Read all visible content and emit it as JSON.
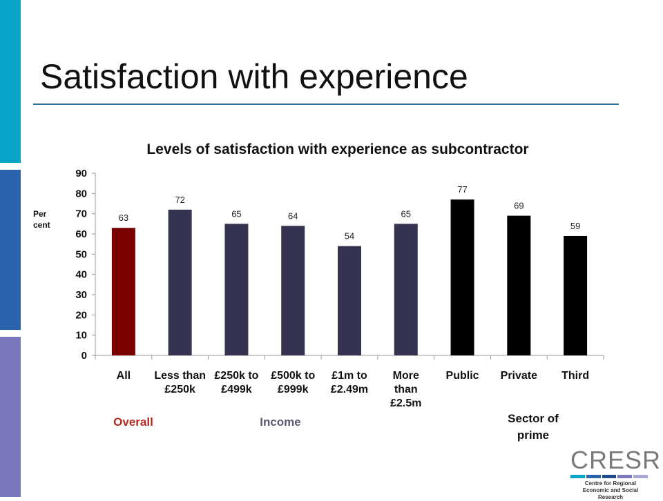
{
  "slide": {
    "title": "Satisfaction with experience"
  },
  "chart_data": {
    "type": "bar",
    "title": "Levels of satisfaction with experience as subcontractor",
    "ylabel": "Per cent",
    "xlabel": "",
    "ylim": [
      0,
      90
    ],
    "yticks": [
      0,
      10,
      20,
      30,
      40,
      50,
      60,
      70,
      80,
      90
    ],
    "grid": false,
    "categories": [
      "All",
      "Less than £250k",
      "£250k to £499k",
      "£500k to £999k",
      "£1m to £2.49m",
      "More than £2.5m",
      "Public",
      "Private",
      "Third"
    ],
    "category_lines": [
      [
        "All"
      ],
      [
        "Less than",
        "£250k"
      ],
      [
        "£250k to",
        "£499k"
      ],
      [
        "£500k to",
        "£999k"
      ],
      [
        "£1m to",
        "£2.49m"
      ],
      [
        "More",
        "than",
        "£2.5m"
      ],
      [
        "Public"
      ],
      [
        "Private"
      ],
      [
        "Third"
      ]
    ],
    "values": [
      63,
      72,
      65,
      64,
      54,
      65,
      77,
      69,
      59
    ],
    "bar_colors": [
      "#7a0000",
      "#343450",
      "#343450",
      "#343450",
      "#343450",
      "#343450",
      "#000000",
      "#000000",
      "#000000"
    ],
    "groups": [
      {
        "label": "Overall",
        "color": "#b52a20"
      },
      {
        "label": "Income",
        "color": "#5a5a72"
      },
      {
        "label": "Sector of prime",
        "color": "#111111"
      }
    ]
  },
  "logo": {
    "text": "CRESR",
    "subtitle": "Centre for Regional Economic and Social Research",
    "bar_colors": [
      "#0aa4c9",
      "#2b63ad",
      "#1e4c8c",
      "#7a78ba",
      "#a9a8d4"
    ]
  }
}
